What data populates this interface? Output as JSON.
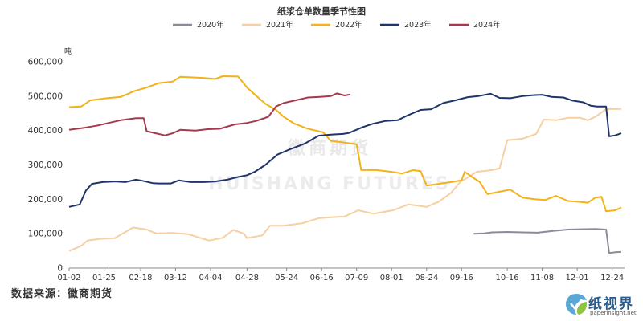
{
  "chart_data": {
    "type": "line",
    "title": "纸浆仓单数量季节性图",
    "ylabel": "吨",
    "xlabel": "",
    "ylim": [
      0,
      600000
    ],
    "yticks": [
      0,
      100000,
      200000,
      300000,
      400000,
      500000,
      600000
    ],
    "ytick_labels": [
      "0",
      "100,000",
      "200,000",
      "300,000",
      "400,000",
      "500,000",
      "600,000"
    ],
    "xlim": [
      "01-02",
      "12-30"
    ],
    "xticks": [
      "01-02",
      "01-25",
      "02-18",
      "03-12",
      "04-04",
      "04-28",
      "05-24",
      "06-16",
      "07-09",
      "08-01",
      "08-24",
      "09-16",
      "10-16",
      "11-08",
      "12-01",
      "12-24"
    ],
    "grid": false,
    "legend_position": "top",
    "series": [
      {
        "name": "2020年",
        "color": "#8c8c99",
        "points": [
          [
            "09-24",
            100000
          ],
          [
            "10-01",
            101000
          ],
          [
            "10-06",
            104000
          ],
          [
            "10-16",
            105000
          ],
          [
            "10-26",
            104000
          ],
          [
            "11-05",
            103000
          ],
          [
            "11-15",
            108000
          ],
          [
            "11-25",
            112000
          ],
          [
            "12-03",
            113000
          ],
          [
            "12-13",
            114000
          ],
          [
            "12-20",
            112000
          ],
          [
            "12-22",
            44000
          ],
          [
            "12-26",
            46000
          ],
          [
            "12-30",
            47000
          ]
        ]
      },
      {
        "name": "2021年",
        "color": "#f6cfa2",
        "points": [
          [
            "01-02",
            50000
          ],
          [
            "01-06",
            57000
          ],
          [
            "01-10",
            65000
          ],
          [
            "01-14",
            80000
          ],
          [
            "01-22",
            85000
          ],
          [
            "02-01",
            87000
          ],
          [
            "02-08",
            105000
          ],
          [
            "02-13",
            118000
          ],
          [
            "02-22",
            112000
          ],
          [
            "02-28",
            101000
          ],
          [
            "03-10",
            102000
          ],
          [
            "03-20",
            99000
          ],
          [
            "03-28",
            88000
          ],
          [
            "04-03",
            80000
          ],
          [
            "04-12",
            88000
          ],
          [
            "04-19",
            111000
          ],
          [
            "04-26",
            100000
          ],
          [
            "04-28",
            87000
          ],
          [
            "05-08",
            95000
          ],
          [
            "05-13",
            123000
          ],
          [
            "05-22",
            123000
          ],
          [
            "06-03",
            130000
          ],
          [
            "06-14",
            145000
          ],
          [
            "06-23",
            148000
          ],
          [
            "07-01",
            150000
          ],
          [
            "07-10",
            168000
          ],
          [
            "07-20",
            158000
          ],
          [
            "08-02",
            168000
          ],
          [
            "08-12",
            185000
          ],
          [
            "08-24",
            178000
          ],
          [
            "09-01",
            193000
          ],
          [
            "09-09",
            218000
          ],
          [
            "09-15",
            250000
          ],
          [
            "09-26",
            280000
          ],
          [
            "10-06",
            285000
          ],
          [
            "10-11",
            290000
          ],
          [
            "10-16",
            372000
          ],
          [
            "10-26",
            376000
          ],
          [
            "11-04",
            390000
          ],
          [
            "11-09",
            432000
          ],
          [
            "11-17",
            430000
          ],
          [
            "11-25",
            437000
          ],
          [
            "12-03",
            437000
          ],
          [
            "12-08",
            430000
          ],
          [
            "12-13",
            440000
          ],
          [
            "12-20",
            462000
          ],
          [
            "12-30",
            463000
          ]
        ]
      },
      {
        "name": "2022年",
        "color": "#f2b21a",
        "points": [
          [
            "01-02",
            468000
          ],
          [
            "01-10",
            470000
          ],
          [
            "01-16",
            488000
          ],
          [
            "01-25",
            493000
          ],
          [
            "02-05",
            498000
          ],
          [
            "02-14",
            515000
          ],
          [
            "02-22",
            525000
          ],
          [
            "03-01",
            538000
          ],
          [
            "03-10",
            542000
          ],
          [
            "03-15",
            556000
          ],
          [
            "03-30",
            553000
          ],
          [
            "04-07",
            550000
          ],
          [
            "04-12",
            558000
          ],
          [
            "04-22",
            557000
          ],
          [
            "04-28",
            525000
          ],
          [
            "05-03",
            505000
          ],
          [
            "05-10",
            478000
          ],
          [
            "05-17",
            460000
          ],
          [
            "05-22",
            440000
          ],
          [
            "05-29",
            420000
          ],
          [
            "06-07",
            405000
          ],
          [
            "06-17",
            395000
          ],
          [
            "06-22",
            370000
          ],
          [
            "07-01",
            365000
          ],
          [
            "07-09",
            360000
          ],
          [
            "07-12",
            285000
          ],
          [
            "07-22",
            285000
          ],
          [
            "08-01",
            280000
          ],
          [
            "08-08",
            275000
          ],
          [
            "08-15",
            285000
          ],
          [
            "08-20",
            282000
          ],
          [
            "08-24",
            240000
          ],
          [
            "09-01",
            245000
          ],
          [
            "09-09",
            250000
          ],
          [
            "09-16",
            255000
          ],
          [
            "09-18",
            280000
          ],
          [
            "09-23",
            265000
          ],
          [
            "09-28",
            250000
          ],
          [
            "10-03",
            215000
          ],
          [
            "10-11",
            222000
          ],
          [
            "10-18",
            228000
          ],
          [
            "10-26",
            205000
          ],
          [
            "11-03",
            200000
          ],
          [
            "11-10",
            198000
          ],
          [
            "11-17",
            210000
          ],
          [
            "11-25",
            195000
          ],
          [
            "12-01",
            193000
          ],
          [
            "12-08",
            190000
          ],
          [
            "12-13",
            205000
          ],
          [
            "12-17",
            207000
          ],
          [
            "12-20",
            165000
          ],
          [
            "12-26",
            168000
          ],
          [
            "12-30",
            176000
          ]
        ]
      },
      {
        "name": "2023年",
        "color": "#1f3569",
        "points": [
          [
            "01-02",
            178000
          ],
          [
            "01-09",
            185000
          ],
          [
            "01-13",
            225000
          ],
          [
            "01-17",
            245000
          ],
          [
            "01-24",
            250000
          ],
          [
            "02-01",
            252000
          ],
          [
            "02-08",
            250000
          ],
          [
            "02-15",
            257000
          ],
          [
            "02-19",
            254000
          ],
          [
            "02-26",
            247000
          ],
          [
            "03-01",
            246000
          ],
          [
            "03-09",
            246000
          ],
          [
            "03-14",
            255000
          ],
          [
            "03-22",
            250000
          ],
          [
            "03-30",
            250000
          ],
          [
            "04-07",
            252000
          ],
          [
            "04-15",
            257000
          ],
          [
            "04-22",
            265000
          ],
          [
            "04-28",
            270000
          ],
          [
            "05-03",
            280000
          ],
          [
            "05-10",
            300000
          ],
          [
            "05-18",
            330000
          ],
          [
            "05-26",
            345000
          ],
          [
            "06-05",
            362000
          ],
          [
            "06-14",
            385000
          ],
          [
            "06-22",
            388000
          ],
          [
            "06-30",
            390000
          ],
          [
            "07-04",
            393000
          ],
          [
            "07-13",
            410000
          ],
          [
            "07-20",
            420000
          ],
          [
            "07-28",
            428000
          ],
          [
            "08-05",
            430000
          ],
          [
            "08-12",
            445000
          ],
          [
            "08-20",
            460000
          ],
          [
            "08-27",
            462000
          ],
          [
            "09-04",
            480000
          ],
          [
            "09-12",
            488000
          ],
          [
            "09-20",
            497000
          ],
          [
            "09-27",
            500000
          ],
          [
            "10-05",
            507000
          ],
          [
            "10-11",
            495000
          ],
          [
            "10-18",
            494000
          ],
          [
            "10-26",
            500000
          ],
          [
            "11-03",
            503000
          ],
          [
            "11-08",
            504000
          ],
          [
            "11-14",
            498000
          ],
          [
            "11-22",
            496000
          ],
          [
            "11-28",
            487000
          ],
          [
            "12-05",
            482000
          ],
          [
            "12-10",
            472000
          ],
          [
            "12-14",
            470000
          ],
          [
            "12-20",
            470000
          ],
          [
            "12-22",
            383000
          ],
          [
            "12-26",
            386000
          ],
          [
            "12-30",
            392000
          ]
        ]
      },
      {
        "name": "2024年",
        "color": "#a53a4d",
        "points": [
          [
            "01-02",
            402000
          ],
          [
            "01-12",
            408000
          ],
          [
            "01-20",
            414000
          ],
          [
            "01-28",
            422000
          ],
          [
            "02-05",
            430000
          ],
          [
            "02-15",
            436000
          ],
          [
            "02-20",
            436000
          ],
          [
            "02-22",
            398000
          ],
          [
            "02-28",
            392000
          ],
          [
            "03-05",
            386000
          ],
          [
            "03-10",
            392000
          ],
          [
            "03-15",
            402000
          ],
          [
            "03-25",
            400000
          ],
          [
            "04-02",
            404000
          ],
          [
            "04-10",
            405000
          ],
          [
            "04-20",
            418000
          ],
          [
            "04-28",
            422000
          ],
          [
            "05-04",
            428000
          ],
          [
            "05-12",
            440000
          ],
          [
            "05-17",
            470000
          ],
          [
            "05-22",
            480000
          ],
          [
            "05-30",
            488000
          ],
          [
            "06-07",
            496000
          ],
          [
            "06-15",
            498000
          ],
          [
            "06-22",
            500000
          ],
          [
            "06-26",
            508000
          ],
          [
            "07-01",
            502000
          ],
          [
            "07-05",
            505000
          ]
        ]
      }
    ]
  },
  "legend_title": "",
  "source_note": "数据来源：徽商期货",
  "watermark": {
    "cn": "徽商期货",
    "en": "HUISHANG FUTURES"
  },
  "logo": {
    "cn": "纸视界",
    "url": "paperinsight.net"
  }
}
